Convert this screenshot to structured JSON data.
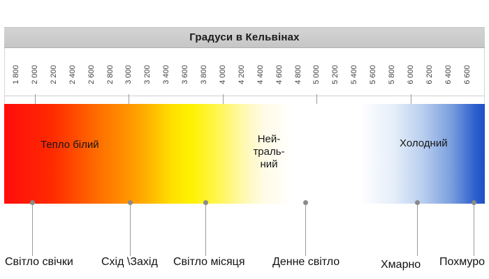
{
  "header": {
    "title": "Градуси в Кельвінах"
  },
  "scale": {
    "ticks": [
      "1 800",
      "2 000",
      "2 200",
      "2 400",
      "2 600",
      "2 800",
      "3 000",
      "3 200",
      "3 400",
      "3 600",
      "3 800",
      "4 000",
      "4 200",
      "4 400",
      "4 600",
      "4 800",
      "5 000",
      "5 200",
      "5 400",
      "5 600",
      "5 800",
      "6 000",
      "6 200",
      "6 400",
      "6 600"
    ]
  },
  "zones": {
    "warm": "Тепло білий",
    "neutral_line1": "Ней-",
    "neutral_line2": "траль-",
    "neutral_line3": "ний",
    "cold": "Холодний"
  },
  "sources": {
    "candle": "Світло свічки",
    "sunrise_sunset": "Схід \\Захід",
    "moonlight": "Світло місяця",
    "daylight": "Денне світло",
    "cloudy": "Хмарно",
    "overcast": "Похмуро"
  },
  "colors": {
    "warm": "#ff0d0d",
    "yellow": "#fff200",
    "neutral": "#ffffff",
    "cold": "#1f4fc6",
    "header_bg": "#cccccc"
  }
}
